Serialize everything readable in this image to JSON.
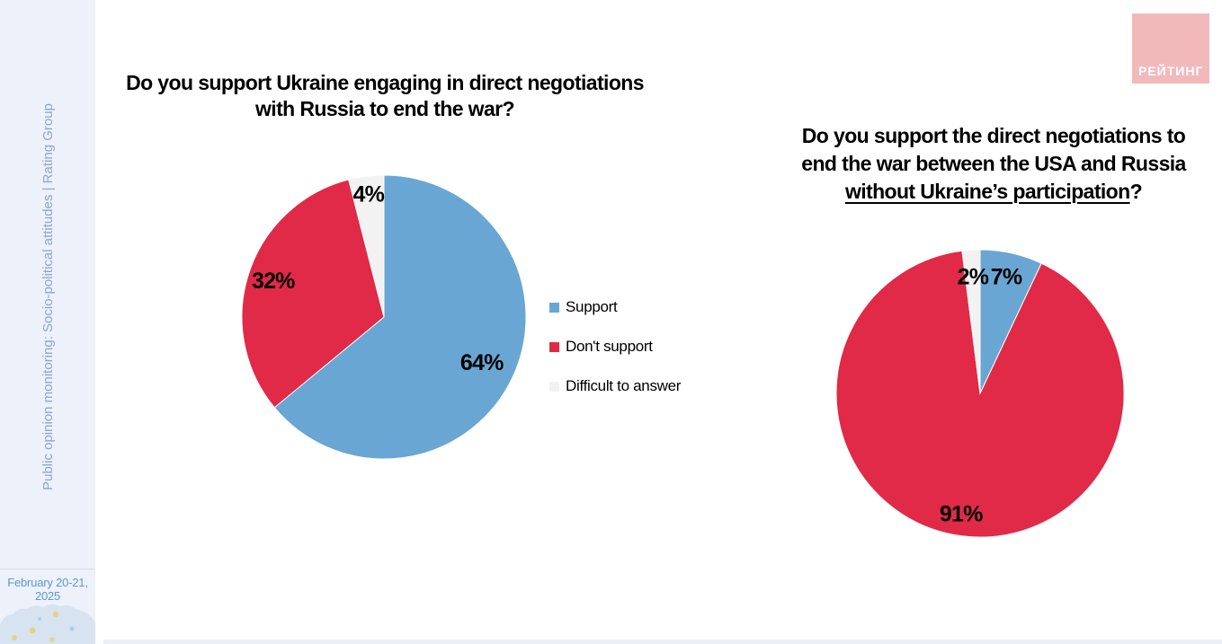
{
  "sidebar": {
    "vertical_label": "Public opinion monitoring: Socio-political attitudes | Rating Group",
    "date": {
      "line1": "February 20-21,",
      "line2": "2025"
    }
  },
  "logo": {
    "text": "РЕЙТИНГ"
  },
  "colors": {
    "support_blue": "#69A6D3",
    "dont_support_red": "#E02A47",
    "difficult_gray": "#F2F2F2",
    "sidebar_bg": "#EDF1F9",
    "sidebar_text": "#8BA5D8",
    "date_text": "#5C97D5",
    "logo_bg": "#F2B9BB",
    "title_text": "#000000"
  },
  "chart_data": [
    {
      "type": "pie",
      "title": "Do you support Ukraine engaging in direct negotiations with Russia to end the war?",
      "title_lines": [
        "Do you support Ukraine engaging in direct negotiations",
        "with Russia to end the war?"
      ],
      "categories": [
        "Support",
        "Don't support",
        "Difficult to answer"
      ],
      "values": [
        64,
        32,
        4
      ],
      "data_labels": [
        "64%",
        "32%",
        "4%"
      ],
      "colors": [
        "#69A6D3",
        "#E02A47",
        "#F2F2F2"
      ],
      "label_radius": [
        0.76,
        0.82,
        0.87
      ],
      "start_angle_deg": 0,
      "direction": "clockwise",
      "legend": {
        "show": true,
        "position": "right",
        "entries": [
          "Support",
          "Don't support",
          "Difficult to answer"
        ]
      }
    },
    {
      "type": "pie",
      "title": "Do you support the direct negotiations to end the war between the USA and Russia without Ukraine’s participation?",
      "title_lines": [
        "Do you support the direct negotiations to",
        "end the war between the USA and Russia"
      ],
      "title_underlined_text": "without Ukraine’s participation",
      "title_suffix": "?",
      "categories": [
        "Support",
        "Don't support",
        "Difficult to answer"
      ],
      "values": [
        7,
        91,
        2
      ],
      "data_labels": [
        "7%",
        "91%",
        "2%"
      ],
      "colors": [
        "#69A6D3",
        "#E02A47",
        "#F2F2F2"
      ],
      "label_radius": [
        0.83,
        0.85,
        0.81
      ],
      "start_angle_deg": 0,
      "direction": "clockwise",
      "legend": {
        "show": false
      }
    }
  ]
}
